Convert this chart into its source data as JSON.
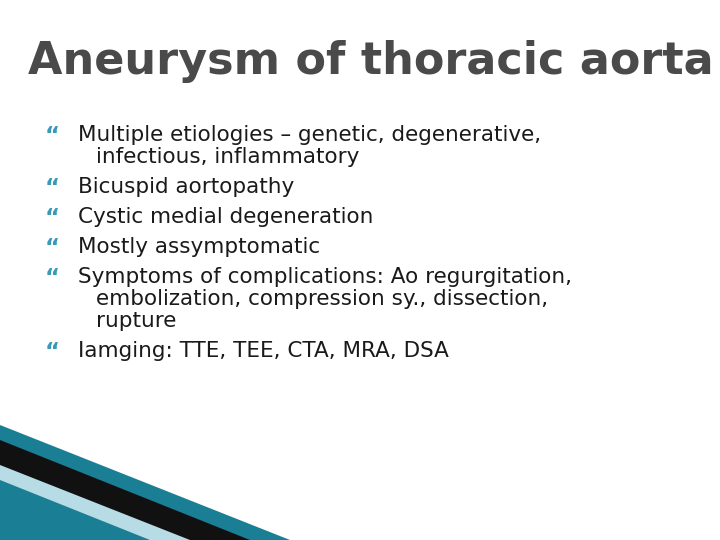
{
  "title": "Aneurysm of thoracic aorta",
  "title_color": "#4a4a4a",
  "title_fontsize": 32,
  "background_color": "#ffffff",
  "bullet_color": "#3a9ab5",
  "text_color": "#1a1a1a",
  "bullet_fontsize": 15.5,
  "bullets": [
    [
      "Multiple etiologies – genetic, degenerative,",
      "infectious, inflammatory"
    ],
    [
      "Bicuspid aortopathy"
    ],
    [
      "Cystic medial degeneration"
    ],
    [
      "Mostly assymptomatic"
    ],
    [
      "Symptoms of complications: Ao regurgitation,",
      "embolization, compression sy., dissection,",
      "rupture"
    ],
    [
      "Iamging: TTE, TEE, CTA, MRA, DSA"
    ]
  ],
  "figsize": [
    7.2,
    5.4
  ],
  "dpi": 100,
  "corner": {
    "dark_teal": "#1a7f94",
    "mid_teal": "#2db3cc",
    "light_teal": "#b8dce6",
    "black": "#111111"
  }
}
